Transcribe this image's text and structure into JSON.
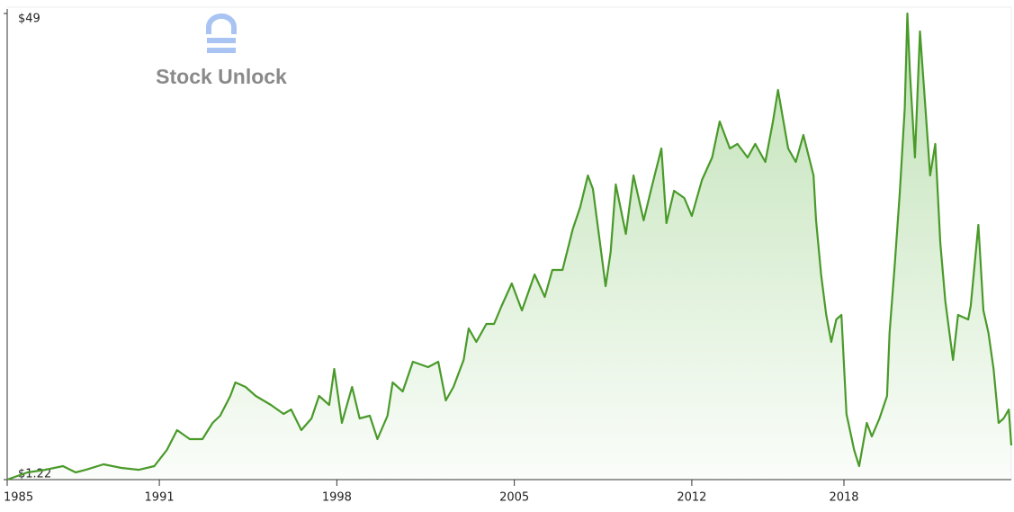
{
  "chart_data": {
    "type": "line",
    "watermark": "Stock Unlock",
    "x": [
      1985.0,
      1985.8,
      1986.5,
      1987.2,
      1987.7,
      1988.1,
      1988.8,
      1989.5,
      1990.2,
      1990.8,
      1991.3,
      1991.7,
      1992.2,
      1992.7,
      1993.1,
      1993.4,
      1993.8,
      1994.0,
      1994.4,
      1994.8,
      1995.4,
      1995.9,
      1996.2,
      1996.6,
      1997.0,
      1997.3,
      1997.7,
      1997.9,
      1998.2,
      1998.6,
      1998.9,
      1999.3,
      1999.6,
      2000.0,
      2000.2,
      2000.6,
      2001.0,
      2001.6,
      2002.0,
      2002.3,
      2002.6,
      2003.0,
      2003.2,
      2003.5,
      2003.9,
      2004.2,
      2004.5,
      2004.9,
      2005.3,
      2005.8,
      2006.2,
      2006.5,
      2006.9,
      2007.3,
      2007.6,
      2007.9,
      2008.1,
      2008.4,
      2008.6,
      2008.8,
      2009.0,
      2009.4,
      2009.7,
      2010.1,
      2010.4,
      2010.8,
      2011.0,
      2011.3,
      2011.7,
      2012.0,
      2012.4,
      2012.8,
      2013.1,
      2013.5,
      2013.8,
      2014.2,
      2014.5,
      2014.9,
      2015.2,
      2015.4,
      2015.8,
      2016.1,
      2016.4,
      2016.8,
      2016.9,
      2017.1,
      2017.3,
      2017.5,
      2017.7,
      2017.9,
      2018.1,
      2018.4,
      2018.6,
      2018.9,
      2019.1,
      2019.4,
      2019.7,
      2019.8,
      2020.0,
      2020.2,
      2020.4,
      2020.5,
      2020.6,
      2020.8,
      2021.0,
      2021.2,
      2021.4,
      2021.6,
      2021.8,
      2022.0,
      2022.3,
      2022.5,
      2022.9,
      2023.0,
      2023.3,
      2023.5,
      2023.7,
      2023.9,
      2024.1,
      2024.3,
      2024.5,
      2024.6
    ],
    "series": [
      {
        "color": "#4a9a2a",
        "values": [
          1.22,
          1.96,
          2.23,
          2.6,
          1.96,
          2.23,
          2.79,
          2.42,
          2.23,
          2.6,
          4.26,
          6.29,
          5.37,
          5.37,
          7.03,
          7.77,
          9.8,
          11.18,
          10.72,
          9.8,
          8.88,
          7.95,
          8.41,
          6.29,
          7.49,
          9.8,
          8.88,
          12.57,
          7.03,
          10.72,
          7.49,
          7.77,
          5.37,
          7.77,
          11.18,
          10.26,
          13.3,
          12.75,
          13.3,
          9.34,
          10.72,
          13.49,
          16.72,
          15.33,
          17.18,
          17.18,
          19.02,
          21.33,
          18.56,
          22.25,
          19.94,
          22.71,
          22.71,
          26.86,
          29.17,
          32.4,
          31.01,
          25.02,
          21.05,
          24.56,
          31.47,
          26.4,
          32.4,
          27.79,
          31.01,
          35.16,
          27.51,
          30.83,
          30.09,
          28.25,
          31.94,
          34.24,
          37.93,
          35.16,
          35.63,
          34.24,
          35.63,
          33.78,
          37.93,
          41.16,
          35.16,
          33.78,
          36.55,
          32.4,
          27.79,
          22.25,
          18.1,
          15.33,
          17.64,
          18.1,
          7.95,
          4.26,
          2.6,
          7.03,
          5.65,
          7.49,
          9.8,
          16.26,
          23.17,
          30.55,
          39.32,
          49.0,
          43.0,
          34.24,
          47.16,
          39.78,
          32.4,
          35.63,
          25.48,
          19.48,
          13.49,
          18.1,
          17.64,
          19.02,
          27.32,
          18.56,
          16.26,
          12.57,
          7.03,
          7.49,
          8.41,
          4.73
        ]
      }
    ],
    "xlim": [
      1985,
      2024.6
    ],
    "xticks": [
      1985,
      1991,
      1998,
      2005,
      2012,
      2018
    ],
    "ylim": [
      1.22,
      49
    ],
    "yticks": [
      {
        "value": 1.22,
        "label": "$1.22"
      },
      {
        "value": 49,
        "label": "$49"
      }
    ]
  }
}
